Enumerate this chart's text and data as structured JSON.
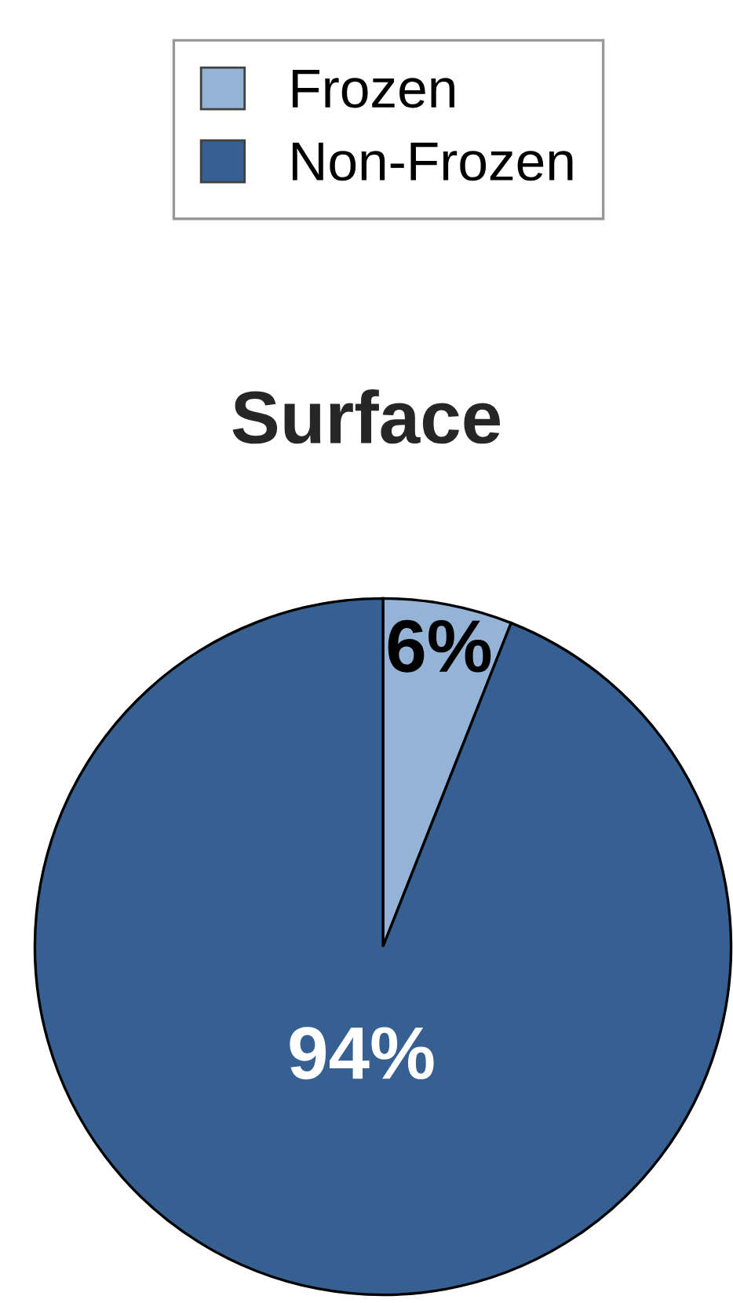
{
  "chart_data": {
    "type": "pie",
    "title": "Surface",
    "categories": [
      "Frozen",
      "Non-Frozen"
    ],
    "values": [
      6,
      94
    ],
    "colors": [
      "#95b3d7",
      "#366092"
    ],
    "value_labels": [
      "6%",
      "94%"
    ],
    "legend": "top"
  }
}
